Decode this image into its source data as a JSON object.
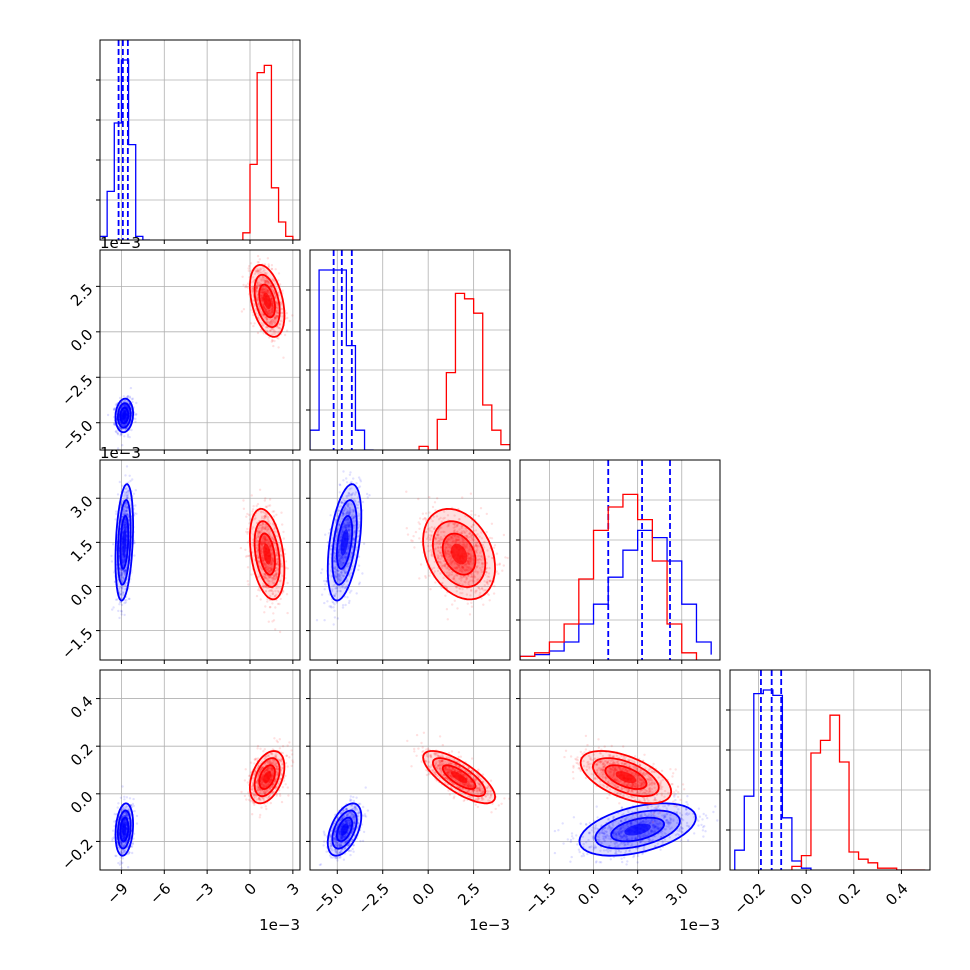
{
  "chart_data": {
    "type": "corner",
    "title": "",
    "colors": {
      "series_a": "#0000ff",
      "series_b": "#ff0000",
      "grid": "#b0b0b0"
    },
    "grid": true,
    "offset_label": "1e−3",
    "parameters": [
      {
        "range": [
          -10.5,
          3.5
        ],
        "tick_values": [
          -9,
          -6,
          -3,
          0,
          3
        ],
        "tick_labels": [
          "−9",
          "−6",
          "−3",
          "0",
          "3"
        ],
        "offset_label": "1e−3"
      },
      {
        "range": [
          -6.5,
          4.5
        ],
        "tick_values": [
          -5.0,
          -2.5,
          0.0,
          2.5
        ],
        "tick_labels": [
          "−5.0",
          "−2.5",
          "0.0",
          "2.5"
        ],
        "offset_label": "1e−3"
      },
      {
        "range": [
          -2.5,
          4.3
        ],
        "tick_values": [
          -1.5,
          0.0,
          1.5,
          3.0
        ],
        "tick_labels": [
          "−1.5",
          "0.0",
          "1.5",
          "3.0"
        ],
        "offset_label": "1e−3"
      },
      {
        "range": [
          -0.32,
          0.52
        ],
        "tick_values": [
          -0.2,
          0.0,
          0.2,
          0.4
        ],
        "tick_labels": [
          "−0.2",
          "0.0",
          "0.2",
          "0.4"
        ],
        "offset_label": ""
      }
    ],
    "series": [
      {
        "key": "series_a",
        "color": "#0000ff",
        "means": [
          -8.8,
          -4.6,
          1.5,
          -0.15
        ],
        "sds": [
          0.28,
          0.42,
          0.9,
          0.05
        ],
        "quantiles": [
          [
            -9.2,
            -8.9,
            -8.55
          ],
          [
            -5.2,
            -4.75,
            -4.2
          ],
          [
            0.5,
            1.65,
            2.6
          ],
          [
            -0.19,
            -0.145,
            -0.105
          ]
        ],
        "histograms": [
          {
            "edges": [
              -10.5,
              -10.0,
              -9.5,
              -9.0,
              -8.5,
              -8.0,
              -7.5,
              -7.0
            ],
            "counts": [
              0.02,
              0.27,
              0.65,
              1.0,
              0.53,
              0.02,
              0.0
            ]
          },
          {
            "edges": [
              -6.5,
              -6.0,
              -5.5,
              -5.0,
              -4.5,
              -4.0,
              -3.5,
              -3.0
            ],
            "counts": [
              0.11,
              1.0,
              1.0,
              1.0,
              0.58,
              0.11,
              0.0
            ]
          },
          {
            "edges": [
              -2.5,
              -2.0,
              -1.5,
              -1.0,
              -0.5,
              0.0,
              0.5,
              1.0,
              1.5,
              2.0,
              2.5,
              3.0,
              3.5,
              4.0
            ],
            "counts": [
              0.02,
              0.03,
              0.05,
              0.1,
              0.2,
              0.31,
              0.46,
              0.61,
              0.72,
              0.68,
              0.55,
              0.31,
              0.1,
              0.03
            ]
          },
          {
            "edges": [
              -0.3,
              -0.26,
              -0.22,
              -0.18,
              -0.14,
              -0.1,
              -0.06,
              -0.02,
              0.02
            ],
            "counts": [
              0.11,
              0.41,
              0.98,
              1.0,
              0.97,
              0.29,
              0.05,
              0.01
            ]
          }
        ]
      },
      {
        "key": "series_b",
        "color": "#ff0000",
        "means": [
          1.2,
          1.7,
          1.1,
          0.07
        ],
        "sds": [
          0.55,
          0.9,
          0.7,
          0.05
        ],
        "quantiles": [],
        "histograms": [
          {
            "edges": [
              -0.5,
              0.0,
              0.5,
              1.0,
              1.5,
              2.0,
              2.5,
              3.0,
              3.5
            ],
            "counts": [
              0.04,
              0.42,
              0.93,
              0.97,
              0.29,
              0.1,
              0.02,
              0.0
            ]
          },
          {
            "edges": [
              -0.5,
              0.0,
              0.5,
              1.0,
              1.5,
              2.0,
              2.5,
              3.0,
              3.5,
              4.0,
              4.5
            ],
            "counts": [
              0.02,
              0.0,
              0.17,
              0.43,
              0.87,
              0.84,
              0.76,
              0.25,
              0.11,
              0.03
            ]
          },
          {
            "edges": [
              -2.5,
              -2.0,
              -1.5,
              -1.0,
              -0.5,
              0.0,
              0.5,
              1.0,
              1.5,
              2.0,
              2.5,
              3.0,
              3.5
            ],
            "counts": [
              0.02,
              0.04,
              0.1,
              0.2,
              0.45,
              0.72,
              0.85,
              0.92,
              0.78,
              0.55,
              0.2,
              0.04
            ]
          },
          {
            "edges": [
              -0.06,
              -0.02,
              0.02,
              0.06,
              0.1,
              0.14,
              0.18,
              0.22,
              0.26,
              0.3,
              0.34,
              0.38,
              0.42,
              0.46,
              0.5
            ],
            "counts": [
              0.02,
              0.08,
              0.65,
              0.72,
              0.86,
              0.6,
              0.1,
              0.06,
              0.04,
              0.01,
              0.01,
              0.0,
              0.0,
              0.0
            ]
          }
        ]
      }
    ],
    "correlations": {
      "series_a": {
        "0-1": 0.1,
        "0-2": 0.3,
        "0-3": 0.2,
        "1-2": 0.45,
        "1-3": 0.5,
        "2-3": 0.45
      },
      "series_b": {
        "0-1": -0.4,
        "0-2": -0.35,
        "0-3": 0.4,
        "1-2": -0.3,
        "1-3": -0.75,
        "2-3": -0.55
      }
    }
  }
}
